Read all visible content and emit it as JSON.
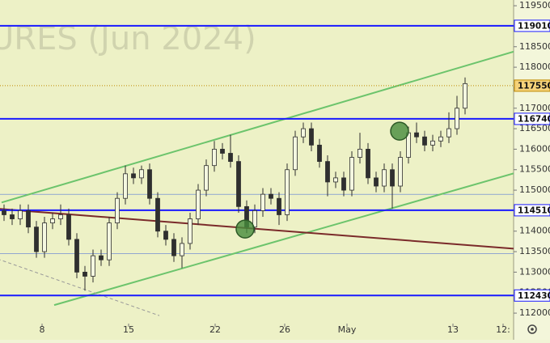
{
  "chart_data": {
    "type": "candlestick",
    "watermark": "URES (Jun 2024)",
    "open": [
      114500,
      114400,
      114300,
      114500,
      114100,
      113500,
      114200,
      114300,
      114400,
      113800,
      113000,
      112900,
      113400,
      113300,
      114200,
      114800,
      115400,
      115300,
      115500,
      114800,
      114000,
      113800,
      113400,
      113700,
      114300,
      115000,
      115600,
      116000,
      115900,
      115700,
      114600,
      114100,
      114500,
      114900,
      114800,
      114400,
      115500,
      116300,
      116500,
      116100,
      115700,
      115200,
      115300,
      115000,
      115800,
      116000,
      115300,
      115100,
      115500,
      115100,
      115800,
      116400,
      116300,
      116100,
      116200,
      116300,
      116500,
      117000
    ],
    "high": [
      114650,
      114550,
      114650,
      114650,
      114250,
      114350,
      114450,
      114650,
      114550,
      113950,
      113150,
      113550,
      113550,
      114350,
      114950,
      115600,
      115550,
      115600,
      115650,
      114950,
      114150,
      113950,
      113850,
      114450,
      115150,
      115750,
      116200,
      116150,
      116350,
      115850,
      114750,
      114650,
      115050,
      115050,
      114950,
      115650,
      116450,
      116650,
      116650,
      116250,
      115850,
      115450,
      115450,
      115950,
      116400,
      116150,
      115450,
      115650,
      115650,
      115950,
      116550,
      116650,
      116450,
      116350,
      116450,
      116900,
      117300,
      117750
    ],
    "low": [
      114250,
      114150,
      114150,
      113950,
      113350,
      113350,
      114050,
      114150,
      113650,
      112850,
      112550,
      112750,
      113150,
      113150,
      114050,
      114650,
      115150,
      115150,
      114650,
      113850,
      113650,
      113250,
      113100,
      113550,
      114150,
      114850,
      115450,
      115750,
      115550,
      114450,
      113950,
      113950,
      114350,
      114650,
      114150,
      114250,
      115350,
      116150,
      115950,
      115550,
      114850,
      115050,
      114850,
      114850,
      115650,
      115150,
      114950,
      114950,
      114550,
      114950,
      115650,
      116150,
      115950,
      115950,
      116050,
      116150,
      116350,
      116850
    ],
    "close": [
      114400,
      114300,
      114500,
      114100,
      113500,
      114200,
      114300,
      114400,
      113800,
      113000,
      112900,
      113400,
      113300,
      114200,
      114800,
      115400,
      115300,
      115500,
      114800,
      114000,
      113800,
      113400,
      113700,
      114300,
      115000,
      115600,
      116000,
      115900,
      115700,
      114600,
      114100,
      114500,
      114900,
      114800,
      114400,
      115500,
      116300,
      116500,
      116100,
      115700,
      115200,
      115300,
      115000,
      115800,
      116000,
      115300,
      115100,
      115500,
      115100,
      115800,
      116400,
      116300,
      116100,
      116200,
      116300,
      116500,
      117000,
      117600
    ],
    "color": "#2f2f2f",
    "xlim": [
      0,
      63.5
    ],
    "xticks": [
      {
        "value": 5.2,
        "label": "8"
      },
      {
        "value": 15.9,
        "label": "15"
      },
      {
        "value": 26.6,
        "label": "22"
      },
      {
        "value": 35.2,
        "label": "26"
      },
      {
        "value": 42.9,
        "label": "May"
      },
      {
        "value": 56,
        "label": "13"
      },
      {
        "value": 62.2,
        "label": "12:"
      }
    ],
    "ylim": [
      111350,
      119640
    ],
    "yticks": [
      112000,
      112500,
      113000,
      113500,
      114000,
      114500,
      115000,
      115500,
      116000,
      116500,
      117000,
      117500,
      118000,
      118500,
      119000,
      119500
    ],
    "levels": [
      {
        "value": 119010,
        "color": "#1a1aff"
      },
      {
        "value": 117550,
        "color": "#c08a00",
        "dotted": true
      },
      {
        "value": 116740,
        "color": "#1a1aff"
      },
      {
        "value": 114510,
        "color": "#1a1aff"
      },
      {
        "value": 112430,
        "color": "#1a1aff"
      }
    ],
    "guides": [
      114900,
      113450
    ],
    "trendlines": [
      {
        "x": [
          0.2,
          63.5
        ],
        "y": [
          114700,
          118380
        ],
        "color": "#6cc46c"
      },
      {
        "x": [
          6.7,
          63.5
        ],
        "y": [
          112196,
          115410
        ],
        "color": "#6cc46c"
      },
      {
        "x": [
          -0.3,
          63.5
        ],
        "y": [
          114546,
          113572
        ],
        "color": "#7a2a2a"
      },
      {
        "x": [
          -0.3,
          19.7
        ],
        "y": [
          113322,
          111940
        ],
        "color": "#999999",
        "dashed": true
      }
    ],
    "markers": [
      {
        "x": 30.3,
        "y": 114052
      },
      {
        "x": 49.4,
        "y": 116440
      }
    ]
  }
}
